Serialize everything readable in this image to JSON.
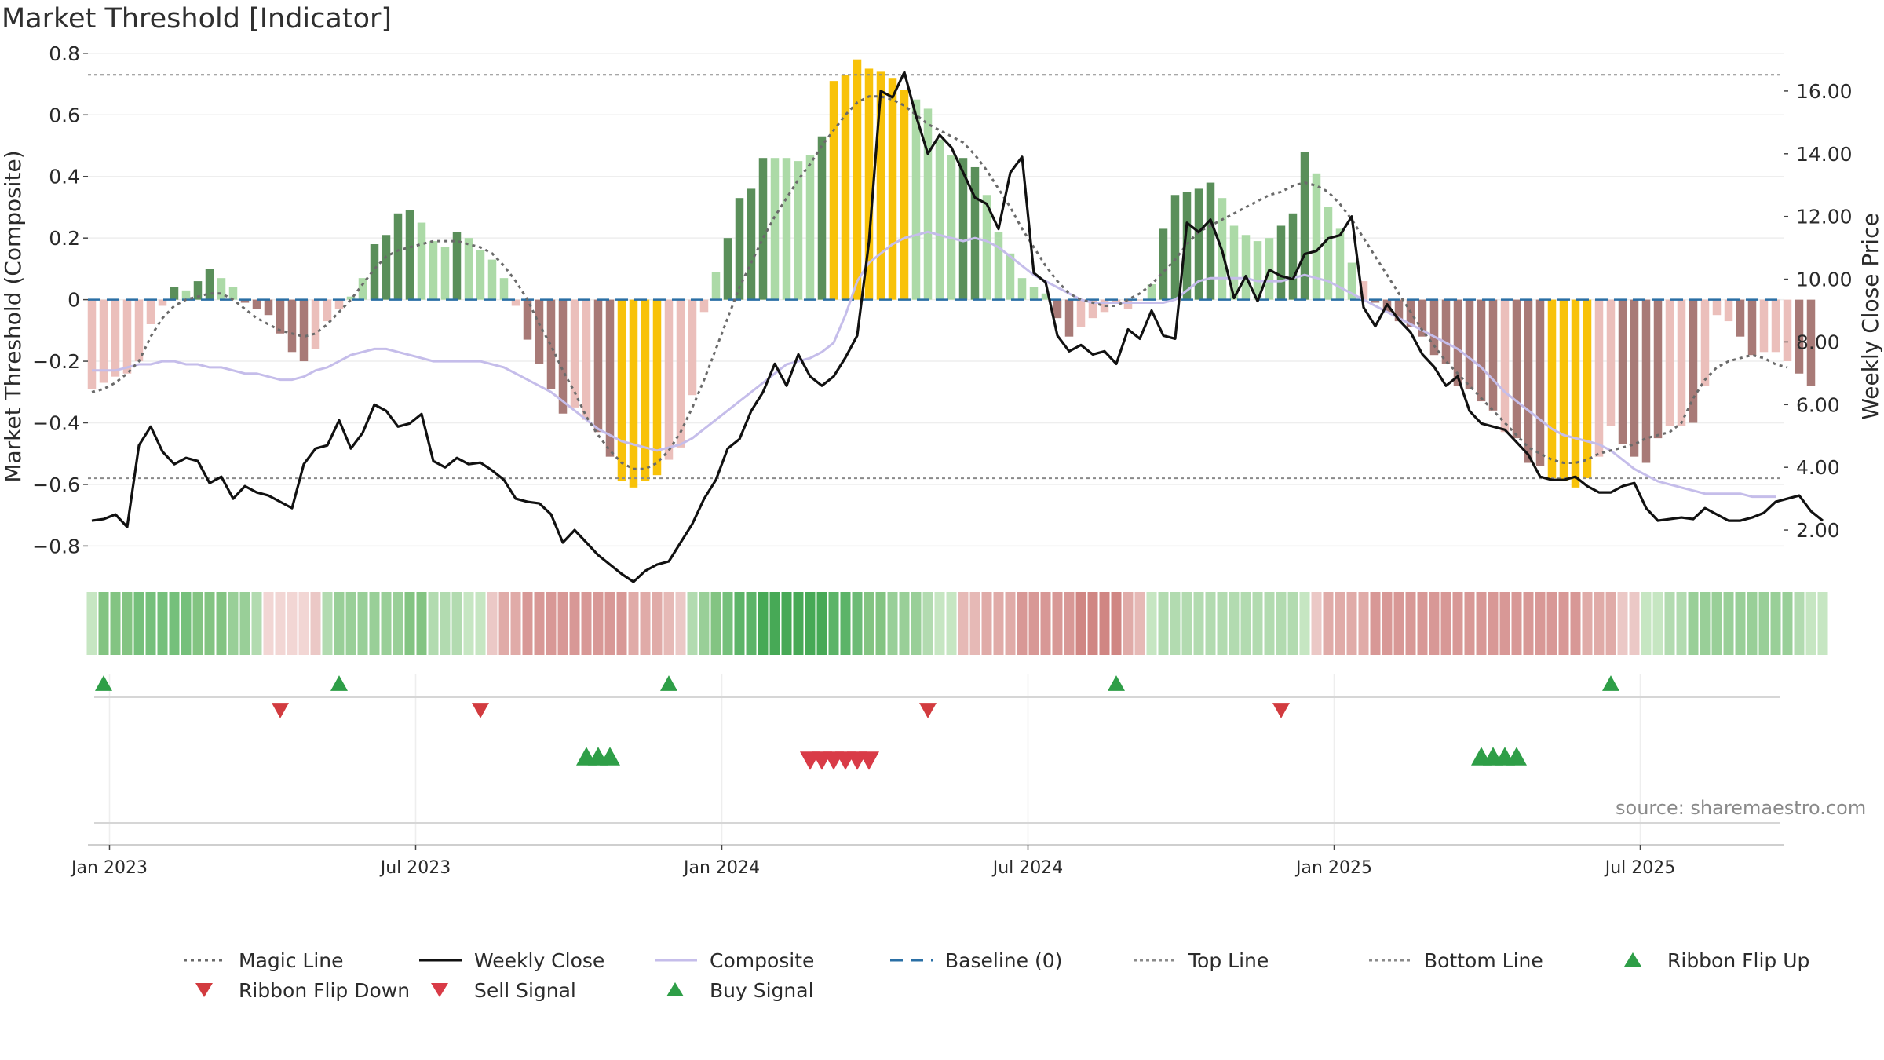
{
  "title": "Market Threshold [Indicator]",
  "source": "source: sharemaestro.com",
  "colors": {
    "bull_dark": "#5a8f5a",
    "bull_light": "#acdaa7",
    "bear_dark": "#a87a77",
    "bear_light": "#ebbfbb",
    "extreme": "#f8c209",
    "close": "#111111",
    "composite": "#c5bdea",
    "magic": "#6a6a6a",
    "baseline": "#2a6fa5",
    "level": "#8a8a8a",
    "up": "#2e9e47",
    "down": "#d23b3f"
  },
  "chart_data": {
    "type": "bar",
    "title": "Market Threshold [Indicator]",
    "xlabel": "",
    "ylabel": "Market Threshold (Composite)",
    "y2label": "Weekly Close Price",
    "ylim": [
      -0.85,
      0.82
    ],
    "y2lim": [
      1.0,
      17.4
    ],
    "yticks": [
      0.8,
      0.6,
      0.4,
      0.2,
      0,
      -0.2,
      -0.4,
      -0.6,
      -0.8
    ],
    "ytick_labels": [
      "0.8",
      "0.6",
      "0.4",
      "0.2",
      "0",
      "−0.2",
      "−0.4",
      "−0.6",
      "−0.8"
    ],
    "y2ticks": [
      16,
      14,
      12,
      10,
      8,
      6,
      4,
      2
    ],
    "y2tick_labels": [
      "16.00",
      "14.00",
      "12.00",
      "10.00",
      "8.00",
      "6.00",
      "4.00",
      "2.00"
    ],
    "xticks": [
      "Jan 2023",
      "Jul 2023",
      "Jan 2024",
      "Jul 2024",
      "Jan 2025",
      "Jul 2025"
    ],
    "xtick_weeks": [
      1.5,
      27.5,
      53.5,
      79.5,
      105.5,
      131.5
    ],
    "top_line": 0.73,
    "bottom_line": -0.58,
    "weeks": 144,
    "composite_bars": [
      -0.29,
      -0.27,
      -0.25,
      -0.24,
      -0.2,
      -0.08,
      -0.02,
      0.04,
      0.03,
      0.06,
      0.1,
      0.07,
      0.04,
      -0.01,
      -0.03,
      -0.05,
      -0.11,
      -0.17,
      -0.2,
      -0.16,
      -0.07,
      -0.03,
      0.01,
      0.07,
      0.18,
      0.21,
      0.28,
      0.29,
      0.25,
      0.19,
      0.17,
      0.22,
      0.2,
      0.16,
      0.13,
      0.07,
      -0.02,
      -0.13,
      -0.21,
      -0.29,
      -0.37,
      -0.35,
      -0.39,
      -0.43,
      -0.51,
      -0.59,
      -0.61,
      -0.59,
      -0.57,
      -0.52,
      -0.48,
      -0.31,
      -0.04,
      0.09,
      0.2,
      0.33,
      0.36,
      0.46,
      0.46,
      0.46,
      0.45,
      0.47,
      0.53,
      0.71,
      0.73,
      0.78,
      0.75,
      0.74,
      0.72,
      0.68,
      0.65,
      0.62,
      0.52,
      0.47,
      0.46,
      0.43,
      0.34,
      0.22,
      0.15,
      0.07,
      0.04,
      0.02,
      -0.06,
      -0.12,
      -0.09,
      -0.06,
      -0.04,
      -0.01,
      -0.03,
      0.0,
      0.05,
      0.23,
      0.34,
      0.35,
      0.36,
      0.38,
      0.33,
      0.24,
      0.21,
      0.19,
      0.2,
      0.24,
      0.28,
      0.48,
      0.41,
      0.3,
      0.23,
      0.12,
      0.06,
      -0.01,
      -0.04,
      -0.07,
      -0.09,
      -0.12,
      -0.18,
      -0.21,
      -0.28,
      -0.29,
      -0.33,
      -0.36,
      -0.43,
      -0.45,
      -0.53,
      -0.54,
      -0.58,
      -0.59,
      -0.61,
      -0.58,
      -0.51,
      -0.41,
      -0.47,
      -0.51,
      -0.53,
      -0.45,
      -0.41,
      -0.41,
      -0.4,
      -0.28,
      -0.05,
      -0.07,
      -0.12,
      -0.18,
      -0.17,
      -0.17,
      -0.2,
      -0.24,
      -0.28
    ],
    "bar_colors": [
      "bear_light",
      "bear_light",
      "bear_light",
      "bear_light",
      "bear_light",
      "bear_light",
      "bear_light",
      "bull_dark",
      "bull_light",
      "bull_dark",
      "bull_dark",
      "bull_light",
      "bull_light",
      "bear_dark",
      "bear_dark",
      "bear_dark",
      "bear_dark",
      "bear_dark",
      "bear_dark",
      "bear_light",
      "bear_light",
      "bear_light",
      "bull_light",
      "bull_light",
      "bull_dark",
      "bull_dark",
      "bull_dark",
      "bull_dark",
      "bull_light",
      "bull_light",
      "bull_light",
      "bull_dark",
      "bull_light",
      "bull_light",
      "bull_light",
      "bull_light",
      "bear_light",
      "bear_dark",
      "bear_dark",
      "bear_dark",
      "bear_dark",
      "bear_light",
      "bear_light",
      "bear_dark",
      "bear_dark",
      "extreme",
      "extreme",
      "extreme",
      "extreme",
      "bear_light",
      "bear_light",
      "bear_light",
      "bear_light",
      "bull_light",
      "bull_dark",
      "bull_dark",
      "bull_dark",
      "bull_dark",
      "bull_light",
      "bull_light",
      "bull_light",
      "bull_light",
      "bull_dark",
      "extreme",
      "extreme",
      "extreme",
      "extreme",
      "extreme",
      "extreme",
      "extreme",
      "bull_light",
      "bull_light",
      "bull_light",
      "bull_light",
      "bull_dark",
      "bull_dark",
      "bull_light",
      "bull_light",
      "bull_light",
      "bull_light",
      "bull_light",
      "bull_light",
      "bear_dark",
      "bear_dark",
      "bear_light",
      "bear_light",
      "bear_light",
      "bear_light",
      "bear_light",
      "bear_light",
      "bull_light",
      "bull_dark",
      "bull_dark",
      "bull_dark",
      "bull_dark",
      "bull_dark",
      "bull_light",
      "bull_light",
      "bull_light",
      "bull_light",
      "bull_light",
      "bull_dark",
      "bull_dark",
      "bull_dark",
      "bull_light",
      "bull_light",
      "bull_light",
      "bull_light",
      "bear_light",
      "bear_dark",
      "bear_dark",
      "bear_dark",
      "bear_dark",
      "bear_dark",
      "bear_dark",
      "bear_dark",
      "bear_dark",
      "bear_dark",
      "bear_dark",
      "bear_dark",
      "bear_light",
      "bear_dark",
      "bear_dark",
      "bear_dark",
      "extreme",
      "extreme",
      "extreme",
      "extreme",
      "bear_light",
      "bear_light",
      "bear_dark",
      "bear_dark",
      "bear_dark",
      "bear_dark",
      "bear_light",
      "bear_light",
      "bear_dark",
      "bear_light",
      "bear_light",
      "bear_light",
      "bear_dark",
      "bear_dark",
      "bear_light",
      "bear_light",
      "bear_light",
      "bear_dark",
      "bear_dark"
    ],
    "weekly_close": [
      2.3,
      2.35,
      2.5,
      2.1,
      4.7,
      5.3,
      4.5,
      4.1,
      4.3,
      4.2,
      3.5,
      3.7,
      3.0,
      3.4,
      3.2,
      3.1,
      2.9,
      2.7,
      4.1,
      4.6,
      4.7,
      5.5,
      4.6,
      5.1,
      6.0,
      5.8,
      5.3,
      5.4,
      5.7,
      4.2,
      4.0,
      4.3,
      4.1,
      4.15,
      3.9,
      3.6,
      3.0,
      2.9,
      2.85,
      2.5,
      1.6,
      2.0,
      1.6,
      1.2,
      0.9,
      0.6,
      0.35,
      0.7,
      0.9,
      1.0,
      1.6,
      2.2,
      3.0,
      3.6,
      4.6,
      4.9,
      5.8,
      6.4,
      7.3,
      6.6,
      7.6,
      6.9,
      6.6,
      6.9,
      7.5,
      8.2,
      11.2,
      16.0,
      15.8,
      16.6,
      15.2,
      14.0,
      14.6,
      14.2,
      13.4,
      12.6,
      12.4,
      11.6,
      13.4,
      13.9,
      10.2,
      9.9,
      8.2,
      7.7,
      7.9,
      7.6,
      7.7,
      7.3,
      8.4,
      8.1,
      9.0,
      8.2,
      8.1,
      11.8,
      11.5,
      11.9,
      10.9,
      9.4,
      10.1,
      9.3,
      10.3,
      10.1,
      10.0,
      10.8,
      10.9,
      11.3,
      11.4,
      12.0,
      9.1,
      8.5,
      9.2,
      8.7,
      8.3,
      7.6,
      7.2,
      6.6,
      6.9,
      5.8,
      5.4,
      5.3,
      5.2,
      4.8,
      4.4,
      3.7,
      3.6,
      3.6,
      3.7,
      3.4,
      3.2,
      3.2,
      3.4,
      3.5,
      2.7,
      2.3,
      2.35,
      2.4,
      2.35,
      2.7,
      2.5,
      2.3,
      2.3,
      2.4,
      2.55,
      2.9,
      3.0,
      3.1,
      2.6,
      2.3
    ],
    "composite_line": [
      -0.23,
      -0.23,
      -0.23,
      -0.22,
      -0.21,
      -0.21,
      -0.2,
      -0.2,
      -0.21,
      -0.21,
      -0.22,
      -0.22,
      -0.23,
      -0.24,
      -0.24,
      -0.25,
      -0.26,
      -0.26,
      -0.25,
      -0.23,
      -0.22,
      -0.2,
      -0.18,
      -0.17,
      -0.16,
      -0.16,
      -0.17,
      -0.18,
      -0.19,
      -0.2,
      -0.2,
      -0.2,
      -0.2,
      -0.2,
      -0.21,
      -0.22,
      -0.24,
      -0.26,
      -0.28,
      -0.3,
      -0.33,
      -0.36,
      -0.39,
      -0.42,
      -0.44,
      -0.46,
      -0.47,
      -0.48,
      -0.49,
      -0.48,
      -0.47,
      -0.45,
      -0.42,
      -0.39,
      -0.36,
      -0.33,
      -0.3,
      -0.27,
      -0.24,
      -0.21,
      -0.2,
      -0.19,
      -0.17,
      -0.14,
      -0.05,
      0.06,
      0.12,
      0.15,
      0.18,
      0.2,
      0.21,
      0.22,
      0.21,
      0.2,
      0.19,
      0.2,
      0.19,
      0.17,
      0.14,
      0.11,
      0.08,
      0.06,
      0.04,
      0.02,
      0.0,
      -0.01,
      -0.01,
      -0.01,
      -0.01,
      -0.01,
      -0.01,
      -0.01,
      0.0,
      0.03,
      0.06,
      0.07,
      0.07,
      0.07,
      0.07,
      0.06,
      0.06,
      0.06,
      0.07,
      0.08,
      0.07,
      0.06,
      0.04,
      0.02,
      0.0,
      -0.02,
      -0.04,
      -0.06,
      -0.08,
      -0.1,
      -0.12,
      -0.14,
      -0.16,
      -0.19,
      -0.22,
      -0.26,
      -0.3,
      -0.33,
      -0.36,
      -0.39,
      -0.42,
      -0.44,
      -0.45,
      -0.46,
      -0.47,
      -0.49,
      -0.52,
      -0.55,
      -0.57,
      -0.59,
      -0.6,
      -0.61,
      -0.62,
      -0.63,
      -0.63,
      -0.63,
      -0.63,
      -0.64,
      -0.64,
      -0.64
    ],
    "magic_line": [
      -0.3,
      -0.29,
      -0.27,
      -0.24,
      -0.2,
      -0.12,
      -0.06,
      -0.02,
      0.0,
      0.01,
      0.02,
      0.02,
      0.0,
      -0.03,
      -0.06,
      -0.08,
      -0.1,
      -0.11,
      -0.12,
      -0.11,
      -0.08,
      -0.04,
      0.0,
      0.05,
      0.1,
      0.14,
      0.16,
      0.17,
      0.18,
      0.19,
      0.19,
      0.19,
      0.18,
      0.17,
      0.15,
      0.11,
      0.06,
      0.0,
      -0.08,
      -0.15,
      -0.23,
      -0.3,
      -0.38,
      -0.44,
      -0.49,
      -0.53,
      -0.55,
      -0.55,
      -0.53,
      -0.49,
      -0.43,
      -0.35,
      -0.26,
      -0.16,
      -0.06,
      0.04,
      0.12,
      0.2,
      0.27,
      0.33,
      0.39,
      0.44,
      0.5,
      0.55,
      0.6,
      0.64,
      0.66,
      0.66,
      0.65,
      0.63,
      0.6,
      0.57,
      0.55,
      0.53,
      0.51,
      0.47,
      0.42,
      0.36,
      0.3,
      0.23,
      0.17,
      0.11,
      0.06,
      0.02,
      0.0,
      -0.01,
      -0.02,
      -0.02,
      0.0,
      0.02,
      0.05,
      0.09,
      0.13,
      0.18,
      0.22,
      0.24,
      0.26,
      0.28,
      0.3,
      0.32,
      0.34,
      0.35,
      0.37,
      0.38,
      0.37,
      0.35,
      0.31,
      0.26,
      0.2,
      0.14,
      0.08,
      0.02,
      -0.04,
      -0.1,
      -0.15,
      -0.2,
      -0.24,
      -0.28,
      -0.32,
      -0.36,
      -0.4,
      -0.44,
      -0.48,
      -0.5,
      -0.52,
      -0.53,
      -0.53,
      -0.52,
      -0.5,
      -0.49,
      -0.48,
      -0.47,
      -0.45,
      -0.44,
      -0.43,
      -0.4,
      -0.32,
      -0.26,
      -0.22,
      -0.2,
      -0.19,
      -0.18,
      -0.19,
      -0.21,
      -0.22
    ],
    "ribbon_colors": [
      "#c6e6c2",
      "#83c482",
      "#83c482",
      "#83c482",
      "#75c07b",
      "#75c07b",
      "#75c07b",
      "#75c07b",
      "#75c07b",
      "#83c482",
      "#83c482",
      "#83c482",
      "#99cf98",
      "#99cf98",
      "#b2dbb0",
      "#f2d6d4",
      "#f2d6d4",
      "#f2d6d4",
      "#f2d6d4",
      "#ebc8c6",
      "#b2dbb0",
      "#99cf98",
      "#99cf98",
      "#99cf98",
      "#99cf98",
      "#99cf98",
      "#99cf98",
      "#83c482",
      "#83c482",
      "#b2dbb0",
      "#b2dbb0",
      "#b2dbb0",
      "#c6e6c2",
      "#c6e6c2",
      "#ebc8c6",
      "#e0aba8",
      "#e0aba8",
      "#d89896",
      "#d89896",
      "#d89896",
      "#d89896",
      "#d89896",
      "#d89896",
      "#d89896",
      "#d89896",
      "#d89896",
      "#e0aba8",
      "#e0aba8",
      "#e0aba8",
      "#e6b9b6",
      "#ebc8c6",
      "#b2dbb0",
      "#99cf98",
      "#83c482",
      "#75c07b",
      "#5cb468",
      "#5cb468",
      "#47a956",
      "#47a956",
      "#47a956",
      "#47a956",
      "#47a956",
      "#47a956",
      "#5cb468",
      "#5cb468",
      "#6cbb76",
      "#83c482",
      "#83c482",
      "#99cf98",
      "#99cf98",
      "#99cf98",
      "#b2dbb0",
      "#c6e6c2",
      "#c6e6c2",
      "#e6b9b6",
      "#e6b9b6",
      "#e0aba8",
      "#e0aba8",
      "#e0aba8",
      "#d89896",
      "#d89896",
      "#d89896",
      "#d89896",
      "#d89896",
      "#d08683",
      "#d08683",
      "#d08683",
      "#d08683",
      "#e0aba8",
      "#e6b9b6",
      "#c6e6c2",
      "#b2dbb0",
      "#b2dbb0",
      "#b2dbb0",
      "#b2dbb0",
      "#b2dbb0",
      "#b2dbb0",
      "#b2dbb0",
      "#b2dbb0",
      "#b2dbb0",
      "#b2dbb0",
      "#b2dbb0",
      "#b2dbb0",
      "#c6e6c2",
      "#ebc8c6",
      "#e0aba8",
      "#e0aba8",
      "#e0aba8",
      "#e0aba8",
      "#d89896",
      "#d89896",
      "#d89896",
      "#d89896",
      "#d89896",
      "#d89896",
      "#d89896",
      "#d89896",
      "#d89896",
      "#d89896",
      "#d89896",
      "#d89896",
      "#d89896",
      "#d89896",
      "#d89896",
      "#d89896",
      "#d89896",
      "#d89896",
      "#e0aba8",
      "#e0aba8",
      "#e0aba8",
      "#ebc8c6",
      "#ebc8c6",
      "#c6e6c2",
      "#c6e6c2",
      "#b2dbb0",
      "#b2dbb0",
      "#99cf98",
      "#99cf98",
      "#99cf98",
      "#99cf98",
      "#99cf98",
      "#99cf98",
      "#99cf98",
      "#99cf98",
      "#99cf98",
      "#b2dbb0",
      "#c6e6c2",
      "#c6e6c2"
    ],
    "ribbon_flip_up_weeks": [
      1,
      21,
      49,
      87,
      129
    ],
    "ribbon_flip_down_weeks": [
      16,
      33,
      71,
      101
    ],
    "buy_signal_weeks": [
      42,
      43,
      44
    ],
    "buy_signal_weeks_2": [
      118,
      119,
      120,
      121
    ],
    "sell_signal_weeks": [
      61,
      62,
      63,
      64,
      65,
      66
    ]
  },
  "legend": [
    {
      "label": "Magic Line",
      "icon": "dotted-line-icon"
    },
    {
      "label": "Weekly Close",
      "icon": "solid-line-icon"
    },
    {
      "label": "Composite",
      "icon": "solid-line-icon"
    },
    {
      "label": "Baseline (0)",
      "icon": "dashed-line-icon"
    },
    {
      "label": "Top Line",
      "icon": "dotted-line-icon"
    },
    {
      "label": "Bottom Line",
      "icon": "dotted-line-icon"
    },
    {
      "label": "Ribbon Flip Up",
      "icon": "triangle-up-icon"
    },
    {
      "label": "Ribbon Flip Down",
      "icon": "triangle-down-icon"
    },
    {
      "label": "Sell Signal",
      "icon": "triangle-down-icon"
    },
    {
      "label": "Buy Signal",
      "icon": "triangle-up-icon"
    }
  ]
}
